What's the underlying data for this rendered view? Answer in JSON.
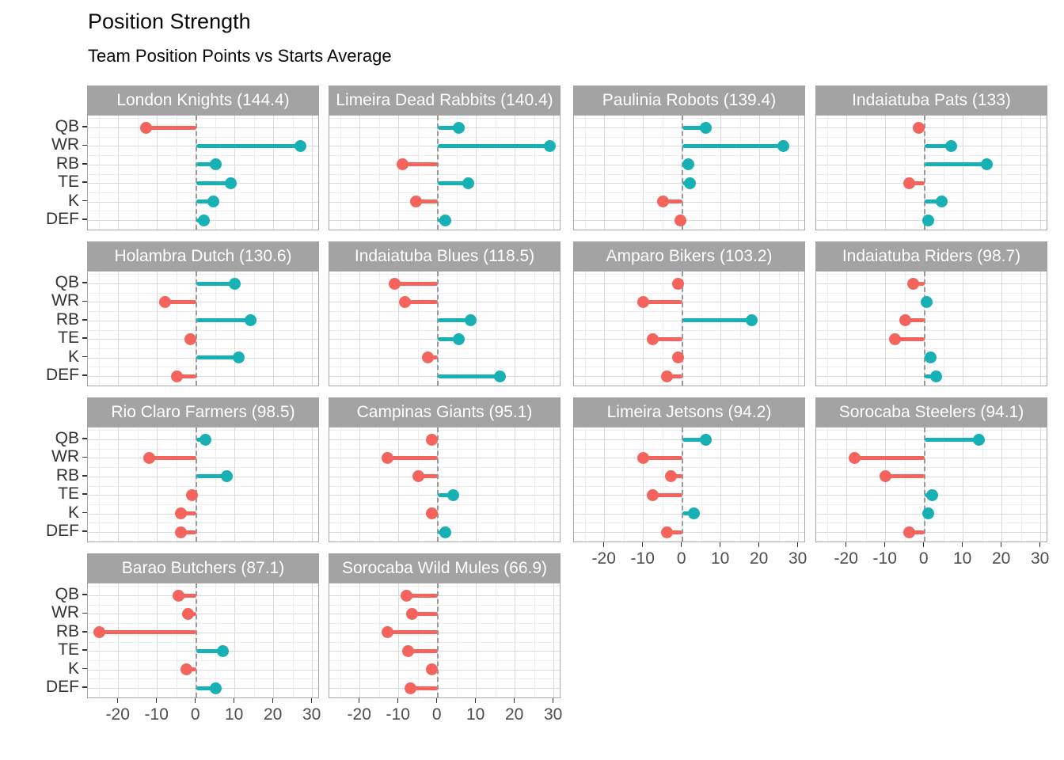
{
  "header": {
    "title": "Position Strength",
    "subtitle": "Team Position Points vs Starts Average"
  },
  "colors": {
    "positive": "#17B1B5",
    "negative": "#F4645C",
    "strip_bg": "#A3A3A3",
    "strip_text": "#FFFFFF",
    "grid_major": "#DBDBDB",
    "grid_minor": "#EDEDED",
    "panel_border": "#A8A8A8",
    "zero_line": "#9A9A9A",
    "axis_text": "#4D4D4D",
    "y_label_text": "#333333"
  },
  "chart_data": {
    "type": "bar",
    "style": "horizontal-lollipop-small-multiples",
    "title": "Position Strength",
    "subtitle": "Team Position Points vs Starts Average",
    "categories": [
      "QB",
      "WR",
      "RB",
      "TE",
      "K",
      "DEF"
    ],
    "x_axis": {
      "ticks": [
        -20,
        -10,
        0,
        10,
        20,
        30
      ],
      "minor_ticks": [
        -25,
        -15,
        -5,
        5,
        15,
        25
      ],
      "range": [
        -27.9,
        31.9
      ],
      "zero_reference_line": true
    },
    "grid": "on",
    "legend_position": "none",
    "facets": [
      {
        "team": "London Knights",
        "total": 144.4,
        "values": [
          -13,
          27,
          5,
          9,
          4.5,
          2
        ]
      },
      {
        "team": "Limeira Dead Rabbits",
        "total": 140.4,
        "values": [
          5.5,
          29,
          -9,
          8,
          -5.5,
          2
        ]
      },
      {
        "team": "Paulinia Robots",
        "total": 139.4,
        "values": [
          6,
          26,
          1.5,
          2,
          -5,
          -0.5
        ]
      },
      {
        "team": "Indaiatuba Pats",
        "total": 133,
        "values": [
          -1.5,
          7,
          16,
          -4,
          4.5,
          1
        ]
      },
      {
        "team": "Holambra Dutch",
        "total": 130.6,
        "values": [
          10,
          -8,
          14,
          -1.5,
          11,
          -5
        ]
      },
      {
        "team": "Indaiatuba Blues",
        "total": 118.5,
        "values": [
          -11,
          -8.5,
          8.5,
          5.5,
          -2.5,
          16
        ]
      },
      {
        "team": "Amparo Bikers",
        "total": 103.2,
        "values": [
          -1,
          -10,
          18,
          -7.5,
          -1,
          -4
        ]
      },
      {
        "team": "Indaiatuba Riders",
        "total": 98.7,
        "values": [
          -3,
          0.5,
          -5,
          -7.5,
          1.5,
          3
        ]
      },
      {
        "team": "Rio Claro Farmers",
        "total": 98.5,
        "values": [
          2.5,
          -12,
          8,
          -1,
          -4,
          -4
        ]
      },
      {
        "team": "Campinas Giants",
        "total": 95.1,
        "values": [
          -1.5,
          -13,
          -5,
          4,
          -1.5,
          2
        ]
      },
      {
        "team": "Limeira Jetsons",
        "total": 94.2,
        "values": [
          6,
          -10,
          -3,
          -7.5,
          3,
          -4
        ]
      },
      {
        "team": "Sorocaba Steelers",
        "total": 94.1,
        "values": [
          14,
          -18,
          -10,
          2,
          1,
          -4
        ]
      },
      {
        "team": "Barao Butchers",
        "total": 87.1,
        "values": [
          -4.5,
          -2,
          -25,
          7,
          -2.5,
          5
        ]
      },
      {
        "team": "Sorocaba Wild Mules",
        "total": 66.9,
        "values": [
          -8,
          -6.5,
          -13,
          -7.5,
          -1.5,
          -7
        ]
      }
    ]
  }
}
